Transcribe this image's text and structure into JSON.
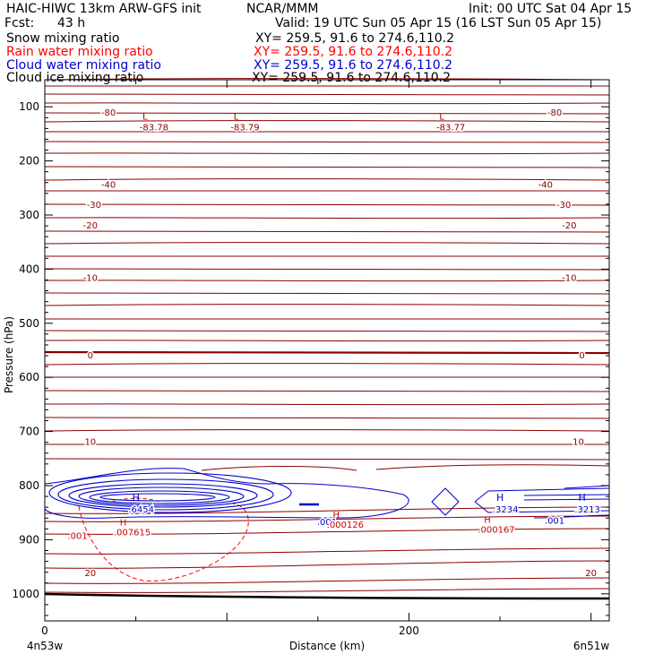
{
  "header": {
    "model": "HAIC-HIWC 13km ARW-GFS init",
    "org": "NCAR/MMM",
    "init": "Init: 00 UTC Sat 04 Apr 15",
    "fcst_label": "Fcst:",
    "fcst_value": "43 h",
    "valid": "Valid: 19 UTC Sun 05 Apr 15 (16 LST Sun 05 Apr 15)"
  },
  "fields": [
    {
      "name": "Snow mixing ratio",
      "xy": "XY= 259.5, 91.6 to 274.6,110.2",
      "color": "#000000"
    },
    {
      "name": "Rain water mixing ratio",
      "xy": "XY= 259.5, 91.6 to 274.6,110.2",
      "color": "#ff0000"
    },
    {
      "name": "Cloud water mixing ratio",
      "xy": "XY= 259.5, 91.6 to 274.6,110.2",
      "color": "#0000cc"
    },
    {
      "name": "Cloud ice mixing ratio",
      "xy": "XY= 259.5, 91.6 to 274.6,110.2",
      "color": "#000000"
    }
  ],
  "chart_data": {
    "type": "contour",
    "xlabel": "Distance (km)",
    "ylabel": "Pressure (hPa)",
    "xlim": [
      0,
      310
    ],
    "ylim": [
      1050,
      50
    ],
    "x_ticks": [
      0,
      200
    ],
    "y_ticks": [
      100,
      200,
      300,
      400,
      500,
      600,
      700,
      800,
      900,
      1000
    ],
    "x_start_label": "4n53w",
    "x_end_label": "6n51w",
    "temperature_contours": {
      "color": "#8b0000",
      "labels": [
        {
          "text": "-80",
          "x": [
            35,
            280
          ],
          "p": 110
        },
        {
          "text": "-40",
          "x": [
            35,
            275
          ],
          "p": 243
        },
        {
          "text": "-30",
          "x": [
            27,
            285
          ],
          "p": 280
        },
        {
          "text": "-20",
          "x": [
            25,
            288
          ],
          "p": 318
        },
        {
          "text": "-10",
          "x": [
            25,
            288
          ],
          "p": 415
        },
        {
          "text": "0",
          "x": [
            25,
            295
          ],
          "p": 558
        },
        {
          "text": "10",
          "x": [
            25,
            293
          ],
          "p": 718
        },
        {
          "text": "20",
          "x": [
            25,
            300
          ],
          "p": 961
        }
      ]
    },
    "lows": [
      {
        "label": "L",
        "value": "-83.78",
        "x": 60,
        "p": 82
      },
      {
        "label": "L",
        "value": "-83.79",
        "x": 110,
        "p": 82
      },
      {
        "label": "L",
        "value": "-83.77",
        "x": 223,
        "p": 82
      }
    ],
    "cloud_water_maxima": [
      {
        "label": "H",
        "value": ".6454",
        "x": 53,
        "p": 825
      },
      {
        "label": "H",
        "value": ".3234",
        "x": 253,
        "p": 825
      },
      {
        "label": "H",
        "value": ".3213",
        "x": 298,
        "p": 825
      }
    ],
    "cloud_water_labels": [
      {
        "text": ".001",
        "x": 155,
        "p": 866
      },
      {
        "text": ".001",
        "x": 280,
        "p": 864
      }
    ],
    "rain_maxima": [
      {
        "label": "H",
        "value": ".007615",
        "x": 48,
        "p": 875
      },
      {
        "label": "H",
        "value": ".000126",
        "x": 165,
        "p": 861
      },
      {
        "label": "H",
        "value": ".000167",
        "x": 248,
        "p": 870
      }
    ],
    "rain_labels": [
      {
        "text": ".001",
        "x": 18,
        "p": 892
      }
    ]
  }
}
